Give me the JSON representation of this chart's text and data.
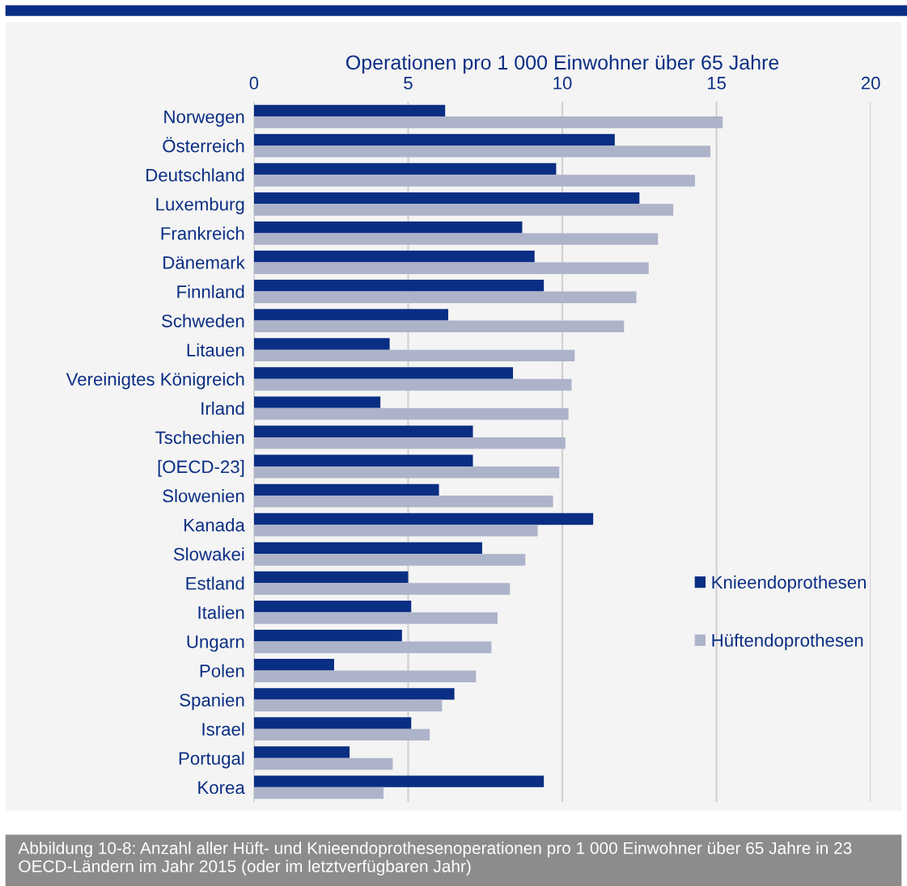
{
  "chart_data": {
    "type": "bar",
    "orientation": "horizontal",
    "xlabel": "Operationen pro 1 000 Einwohner über 65 Jahre",
    "categories": [
      "Norwegen",
      "Österreich",
      "Deutschland",
      "Luxemburg",
      "Frankreich",
      "Dänemark",
      "Finnland",
      "Schweden",
      "Litauen",
      "Vereinigtes Königreich",
      "Irland",
      "Tschechien",
      "[OECD-23]",
      "Slowenien",
      "Kanada",
      "Slowakei",
      "Estland",
      "Italien",
      "Ungarn",
      "Polen",
      "Spanien",
      "Israel",
      "Portugal",
      "Korea"
    ],
    "series": [
      {
        "name": "Knieendoprothesen",
        "color": "#0a2e83",
        "values": [
          6.2,
          11.7,
          9.8,
          12.5,
          8.7,
          9.1,
          9.4,
          6.3,
          4.4,
          8.4,
          4.1,
          7.1,
          7.1,
          6.0,
          11.0,
          7.4,
          5.0,
          5.1,
          4.8,
          2.6,
          6.5,
          5.1,
          3.1,
          9.4
        ]
      },
      {
        "name": "Hüftendoprothesen",
        "color": "#adb3c9",
        "values": [
          15.2,
          14.8,
          14.3,
          13.6,
          13.1,
          12.8,
          12.4,
          12.0,
          10.4,
          10.3,
          10.2,
          10.1,
          9.9,
          9.7,
          9.2,
          8.8,
          8.3,
          7.9,
          7.7,
          7.2,
          6.1,
          5.7,
          4.5,
          4.2
        ]
      }
    ],
    "xlim": [
      0,
      20
    ],
    "xticks": [
      0,
      5,
      10,
      15,
      20
    ],
    "grid": "x",
    "legend": "right",
    "annotations": [
      "Abbildung 10-8: Anzahl aller Hüft- und Knieendoprothesenoperationen pro 1 000 Einwohner über 65 Jahre in 23 OECD-Ländern im Jahr 2015 (oder im letztverfügbaren Jahr)"
    ]
  }
}
